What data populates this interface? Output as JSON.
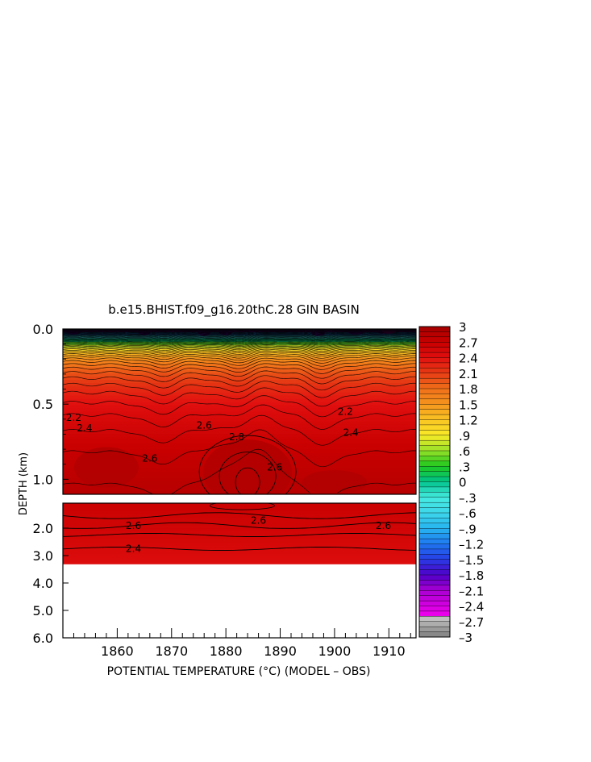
{
  "chart_data": {
    "type": "heatmap",
    "title": "b.e15.BHIST.f09_g16.20thC.28 GIN BASIN",
    "xlabel": "POTENTIAL TEMPERATURE (°C) (MODEL – OBS)",
    "ylabel": "DEPTH (km)",
    "x_range": [
      1850,
      1915
    ],
    "x_ticks": [
      "1860",
      "1870",
      "1880",
      "1890",
      "1900",
      "1910"
    ],
    "y_ticks_upper": [
      "0.0",
      "0.5",
      "1.0"
    ],
    "y_ticks_lower": [
      "2.0",
      "3.0",
      "4.0",
      "5.0",
      "6.0"
    ],
    "upper_panel_depth_range": [
      0.0,
      1.1
    ],
    "lower_panel_depth_range": [
      1.5,
      6.0
    ],
    "colorbar": {
      "range": [
        -3,
        3
      ],
      "labels": [
        "3",
        "2.7",
        "2.4",
        "2.1",
        "1.8",
        "1.5",
        "1.2",
        ".9",
        ".6",
        ".3",
        "0",
        "–.3",
        "–.6",
        "–.9",
        "–1.2",
        "–1.5",
        "–1.8",
        "–2.1",
        "–2.4",
        "–2.7",
        "–3"
      ]
    },
    "contour_labels": [
      {
        "text": "2.2",
        "x": 1852,
        "depth": 0.59
      },
      {
        "text": "2.4",
        "x": 1854,
        "depth": 0.66
      },
      {
        "text": "2.6",
        "x": 1866,
        "depth": 0.86
      },
      {
        "text": "2.6",
        "x": 1876,
        "depth": 0.64
      },
      {
        "text": "2.8",
        "x": 1882,
        "depth": 0.72
      },
      {
        "text": "2.6",
        "x": 1889,
        "depth": 0.92
      },
      {
        "text": "2.2",
        "x": 1902,
        "depth": 0.55
      },
      {
        "text": "2.4",
        "x": 1903,
        "depth": 0.69
      },
      {
        "text": "2.6",
        "x": 1863,
        "depth": 1.95
      },
      {
        "text": "2.6",
        "x": 1886,
        "depth": 1.85
      },
      {
        "text": "2.6",
        "x": 1909,
        "depth": 1.95
      },
      {
        "text": "2.4",
        "x": 1863,
        "depth": 2.75
      }
    ]
  }
}
